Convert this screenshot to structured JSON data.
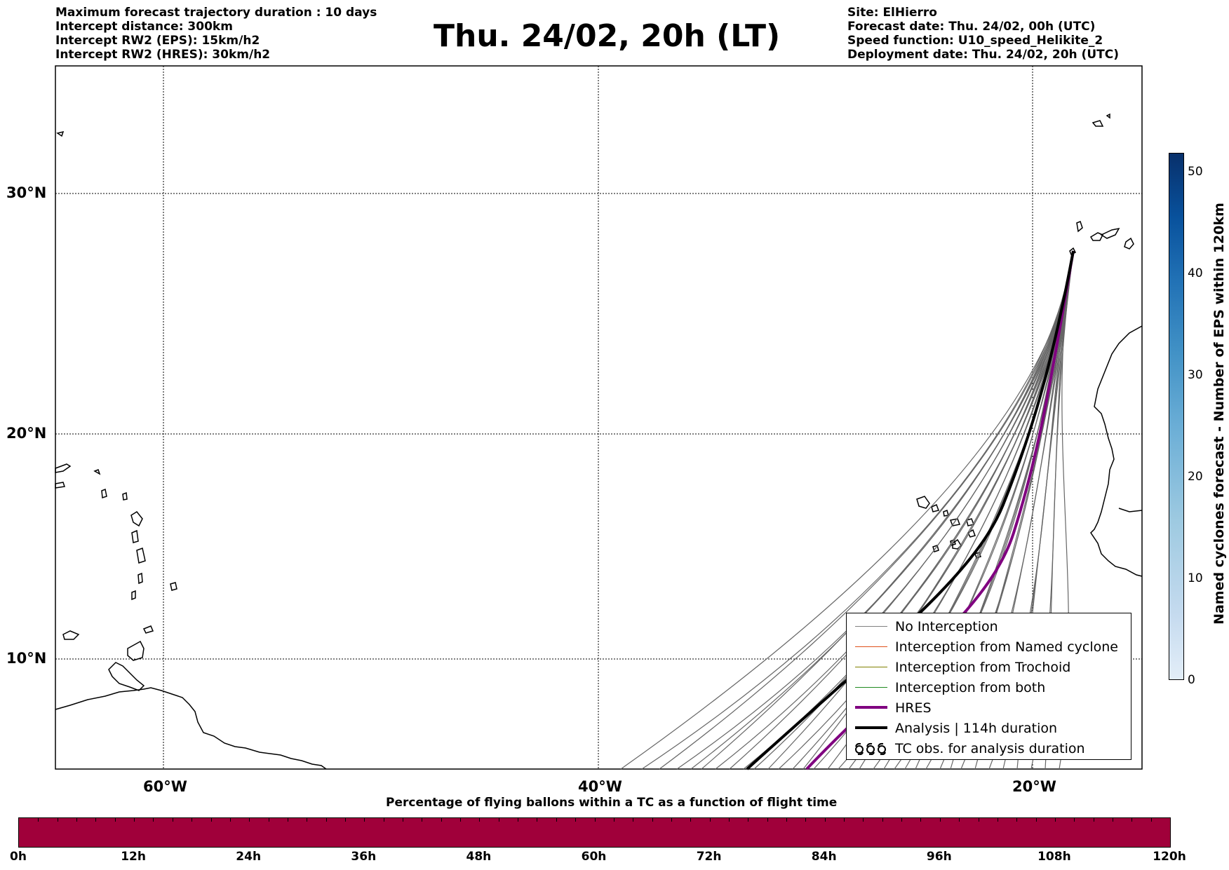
{
  "header": {
    "left": [
      "Maximum forecast trajectory duration : 10 days",
      "Intercept distance: 300km",
      "Intercept RW2 (EPS):  15km/h2",
      "Intercept RW2 (HRES): 30km/h2"
    ],
    "title": "Thu. 24/02, 20h (LT)",
    "right": [
      "Site: ElHierro",
      "Forecast date: Thu. 24/02, 00h (UTC)",
      "Speed function: U10_speed_Helikite_2",
      "Deployment date: Thu. 24/02, 20h (UTC)"
    ]
  },
  "map": {
    "lat_labels": [
      "30°N",
      "20°N",
      "10°N"
    ],
    "lon_labels": [
      "60°W",
      "40°W",
      "20°W"
    ],
    "colors": {
      "ensemble": "#666666",
      "hres": "#800080",
      "analysis": "#000000"
    }
  },
  "legend": {
    "items": [
      {
        "label": "No Interception",
        "color": "#808080",
        "width": 1
      },
      {
        "label": "Interception from Named cyclone",
        "color": "#e0501a",
        "width": 1.5
      },
      {
        "label": "Interception from Trochoid",
        "color": "#808000",
        "width": 1.5
      },
      {
        "label": "Interception from both",
        "color": "#1f8a1f",
        "width": 1.5
      },
      {
        "label": "HRES",
        "color": "#800080",
        "width": 4
      },
      {
        "label": "Analysis | 114h duration",
        "color": "#000000",
        "width": 4
      },
      {
        "label": "TC obs. for analysis duration",
        "icon": "cyclone-symbols"
      }
    ]
  },
  "bottom_bar": {
    "title": "Percentage of flying ballons within a TC as a function of flight time",
    "labels": [
      "0h",
      "12h",
      "24h",
      "36h",
      "48h",
      "60h",
      "72h",
      "84h",
      "96h",
      "108h",
      "120h"
    ],
    "color": "#a0003a"
  },
  "side_colorbar": {
    "label": "Named cyclones forecast - Number of EPS within 120km",
    "ticks": [
      "0",
      "10",
      "20",
      "30",
      "40",
      "50"
    ]
  }
}
